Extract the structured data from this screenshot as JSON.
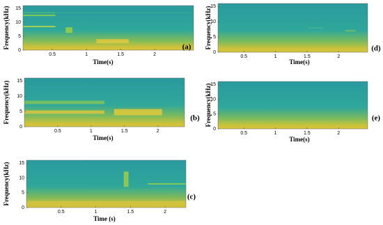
{
  "chart_data": [
    {
      "type": "spectrogram",
      "label": "(a)",
      "xlabel": "Time(s)",
      "ylabel": "Frequency(kHz)",
      "xlim": [
        0.07,
        2.57
      ],
      "ylim": [
        0,
        16
      ],
      "xticks": [
        0.5,
        1,
        1.5,
        2
      ],
      "yticks": [
        0,
        5,
        10,
        15
      ]
    },
    {
      "type": "spectrogram",
      "label": "(b)",
      "xlabel": "Time(s)",
      "ylabel": "Frequency(kHz)",
      "xlim": [
        0,
        2.4
      ],
      "ylim": [
        0,
        16
      ],
      "xticks": [
        0.5,
        1,
        1.5,
        2
      ],
      "yticks": [
        0,
        5,
        10,
        15
      ]
    },
    {
      "type": "spectrogram",
      "label": "(c)",
      "xlabel": "Time (s)",
      "ylabel": "Frequency(kHz)",
      "xlim": [
        0,
        2.3
      ],
      "ylim": [
        0,
        16
      ],
      "xticks": [
        0.5,
        1,
        1.5,
        2
      ],
      "yticks": [
        0,
        5,
        10,
        15
      ]
    },
    {
      "type": "spectrogram",
      "label": "(d)",
      "xlabel": "Time(s)",
      "ylabel": "Frequency(kHz)",
      "xlim": [
        0.09,
        2.46
      ],
      "ylim": [
        0,
        16
      ],
      "xticks": [
        0.5,
        1,
        1.5,
        2
      ],
      "yticks": [
        0,
        5,
        10,
        15
      ]
    },
    {
      "type": "spectrogram",
      "label": "(e)",
      "xlabel": "Time(s)",
      "ylabel": "Frequency(kHz)",
      "xlim": [
        0.09,
        2.46
      ],
      "ylim": [
        0,
        16
      ],
      "xticks": [
        0.5,
        1,
        1.5,
        2
      ],
      "yticks": [
        0,
        5,
        10,
        15
      ]
    }
  ]
}
